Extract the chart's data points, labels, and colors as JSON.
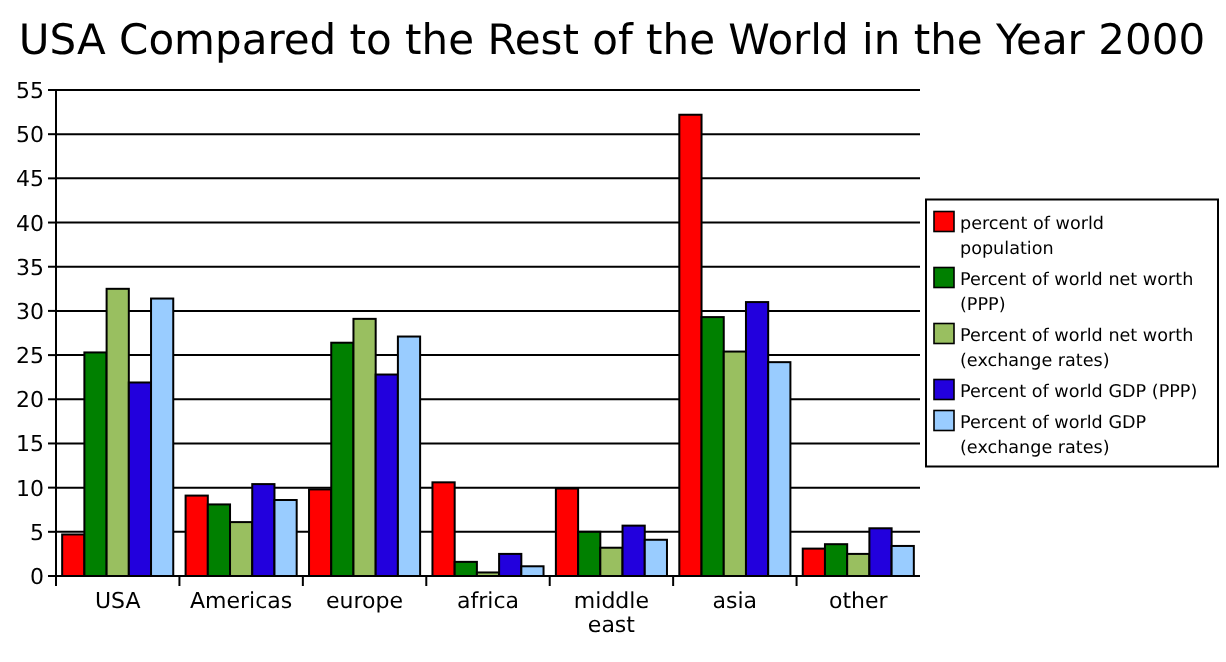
{
  "chart_data": {
    "type": "bar",
    "title": "USA Compared to the Rest of the World in the Year 2000",
    "categories": [
      "USA",
      "Americas",
      "europe",
      "africa",
      "middle east",
      "asia",
      "other"
    ],
    "series": [
      {
        "name": "percent of world population",
        "color": "#ff0000",
        "values": [
          4.7,
          9.1,
          9.8,
          10.6,
          9.9,
          52.2,
          3.1
        ]
      },
      {
        "name": "Percent of world net worth (PPP)",
        "color": "#008000",
        "values": [
          25.3,
          8.1,
          26.4,
          1.6,
          5.0,
          29.3,
          3.6
        ]
      },
      {
        "name": "Percent of world net worth (exchange rates)",
        "color": "#99bf60",
        "values": [
          32.5,
          6.1,
          29.1,
          0.4,
          3.2,
          25.4,
          2.5
        ]
      },
      {
        "name": "Percent of world GDP (PPP)",
        "color": "#2200dd",
        "values": [
          21.9,
          10.4,
          22.8,
          2.5,
          5.7,
          31.0,
          5.4
        ]
      },
      {
        "name": "Percent of world GDP (exchange rates)",
        "color": "#99ccff",
        "values": [
          31.4,
          8.6,
          27.1,
          1.1,
          4.1,
          24.2,
          3.4
        ]
      }
    ],
    "ylim": [
      0,
      55
    ],
    "yticks": [
      0,
      5,
      10,
      15,
      20,
      25,
      30,
      35,
      40,
      45,
      50,
      55
    ],
    "grid": "y",
    "legend": "right"
  }
}
